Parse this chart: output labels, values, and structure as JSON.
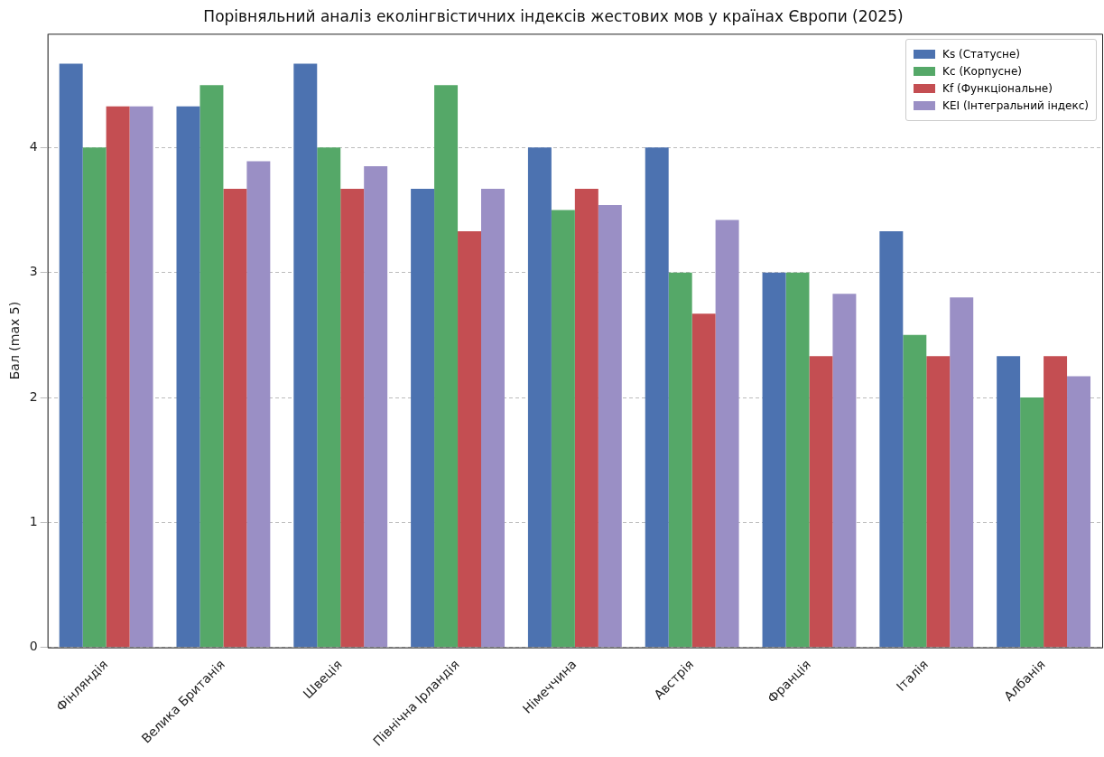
{
  "chart_data": {
    "type": "bar",
    "title": "Порівняльний аналіз еколінгвістичних індексів жестових мов у країнах Європи (2025)",
    "ylabel": "Бал (max 5)",
    "categories": [
      "Фінляндія",
      "Велика Британія",
      "Швеція",
      "Північна Ірландія",
      "Німеччина",
      "Австрія",
      "Франція",
      "Італія",
      "Албанія"
    ],
    "series": [
      {
        "name": "Ks (Статусне)",
        "color": "#4c72b0",
        "values": [
          4.67,
          4.33,
          4.67,
          3.67,
          4,
          4,
          3,
          3.33,
          2.33
        ]
      },
      {
        "name": "Kc (Корпусне)",
        "color": "#55a868",
        "values": [
          4,
          4.5,
          4,
          4.5,
          3.5,
          3,
          3,
          2.5,
          2
        ]
      },
      {
        "name": "Kf (Функціональне)",
        "color": "#c44e52",
        "values": [
          4.33,
          3.67,
          3.67,
          3.33,
          3.67,
          2.67,
          2.33,
          2.33,
          2.33
        ]
      },
      {
        "name": "KEI (Інтегральний індекс)",
        "color": "#9a8fc5",
        "values": [
          4.33,
          3.89,
          3.85,
          3.67,
          3.54,
          3.42,
          2.83,
          2.8,
          2.17
        ]
      }
    ],
    "ylim": [
      0,
      4.91
    ],
    "yticks": [
      0,
      1,
      2,
      3,
      4
    ],
    "grid": "y",
    "legend": "top right"
  }
}
